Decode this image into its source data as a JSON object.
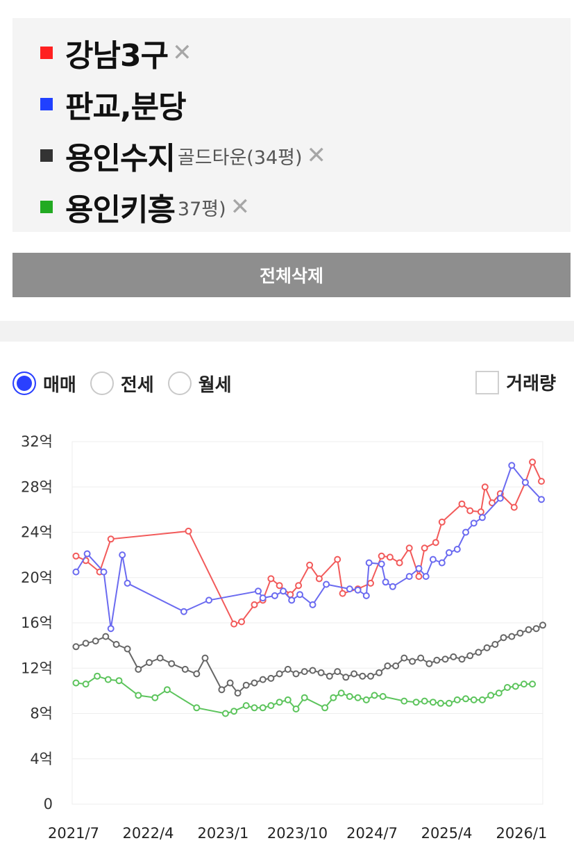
{
  "legend": {
    "items": [
      {
        "label": "강남3구",
        "color": "#ff2020",
        "remove": "✕"
      },
      {
        "label": "판교,분당",
        "color": "#2040ff",
        "remove": ""
      },
      {
        "label": "용인수지",
        "color": "#333333",
        "sub": "골드타운(34평)",
        "remove": "✕"
      },
      {
        "label": "용인키흥",
        "color": "#22aa22",
        "sub": "37평)",
        "remove": "✕"
      }
    ]
  },
  "actions": {
    "delete_all": "전체삭제"
  },
  "trade_types": {
    "options": [
      "매매",
      "전세",
      "월세"
    ],
    "selected": "매매"
  },
  "volume": {
    "label": "거래량",
    "checked": false
  },
  "chart_data": {
    "type": "line",
    "y_unit": "억",
    "ylim": [
      0,
      32
    ],
    "y_ticks": [
      "0",
      "4억",
      "8억",
      "12억",
      "16억",
      "20억",
      "24억",
      "28억",
      "32억"
    ],
    "x_ticks": [
      "2021/7",
      "2022/4",
      "2023/1",
      "2023/10",
      "2024/7",
      "2025/4",
      "2026/1"
    ],
    "x_range": [
      "2021-07-01",
      "2026-03-25"
    ],
    "grid": true,
    "series": [
      {
        "name": "강남3구",
        "color": "#f25a5a",
        "points": [
          [
            "2021-07-15",
            21.9
          ],
          [
            "2021-08-20",
            21.5
          ],
          [
            "2021-10-10",
            20.5
          ],
          [
            "2021-11-20",
            23.4
          ],
          [
            "2022-09-01",
            24.1
          ],
          [
            "2023-02-15",
            15.9
          ],
          [
            "2023-03-15",
            16.1
          ],
          [
            "2023-05-01",
            17.6
          ],
          [
            "2023-06-01",
            18.0
          ],
          [
            "2023-07-01",
            19.9
          ],
          [
            "2023-08-01",
            19.3
          ],
          [
            "2023-09-10",
            18.5
          ],
          [
            "2023-10-10",
            19.3
          ],
          [
            "2023-11-20",
            21.1
          ],
          [
            "2023-12-25",
            19.9
          ],
          [
            "2024-03-01",
            21.6
          ],
          [
            "2024-03-20",
            18.6
          ],
          [
            "2024-05-15",
            19.0
          ],
          [
            "2024-07-01",
            19.5
          ],
          [
            "2024-08-10",
            21.9
          ],
          [
            "2024-09-10",
            21.8
          ],
          [
            "2024-10-15",
            21.3
          ],
          [
            "2024-11-20",
            22.6
          ],
          [
            "2024-12-25",
            20.1
          ],
          [
            "2025-01-15",
            22.6
          ],
          [
            "2025-02-25",
            23.1
          ],
          [
            "2025-03-20",
            24.9
          ],
          [
            "2025-06-01",
            26.5
          ],
          [
            "2025-07-01",
            25.9
          ],
          [
            "2025-08-10",
            25.8
          ],
          [
            "2025-08-25",
            28.0
          ],
          [
            "2025-09-20",
            26.6
          ],
          [
            "2025-10-20",
            27.4
          ],
          [
            "2025-12-10",
            26.2
          ],
          [
            "2026-01-20",
            28.4
          ],
          [
            "2026-02-15",
            30.2
          ],
          [
            "2026-03-20",
            28.5
          ]
        ]
      },
      {
        "name": "판교,분당",
        "color": "#6a6af0",
        "points": [
          [
            "2021-07-15",
            20.5
          ],
          [
            "2021-08-25",
            22.1
          ],
          [
            "2021-10-25",
            20.5
          ],
          [
            "2021-11-20",
            15.5
          ],
          [
            "2022-01-01",
            22.0
          ],
          [
            "2022-01-20",
            19.5
          ],
          [
            "2022-08-15",
            17.0
          ],
          [
            "2022-11-15",
            18.0
          ],
          [
            "2023-05-15",
            18.8
          ],
          [
            "2023-06-01",
            18.2
          ],
          [
            "2023-07-15",
            18.4
          ],
          [
            "2023-08-15",
            18.8
          ],
          [
            "2023-09-15",
            18.0
          ],
          [
            "2023-10-15",
            18.5
          ],
          [
            "2023-12-01",
            17.6
          ],
          [
            "2024-01-20",
            19.4
          ],
          [
            "2024-04-15",
            19.0
          ],
          [
            "2024-05-15",
            18.9
          ],
          [
            "2024-06-15",
            18.4
          ],
          [
            "2024-06-25",
            21.3
          ],
          [
            "2024-08-10",
            21.2
          ],
          [
            "2024-08-25",
            19.6
          ],
          [
            "2024-09-20",
            19.2
          ],
          [
            "2024-11-20",
            20.1
          ],
          [
            "2024-12-25",
            20.8
          ],
          [
            "2025-01-20",
            20.1
          ],
          [
            "2025-02-15",
            21.6
          ],
          [
            "2025-03-20",
            21.3
          ],
          [
            "2025-04-15",
            22.2
          ],
          [
            "2025-05-15",
            22.5
          ],
          [
            "2025-06-15",
            24.0
          ],
          [
            "2025-07-15",
            24.8
          ],
          [
            "2025-08-15",
            25.3
          ],
          [
            "2025-10-20",
            27.0
          ],
          [
            "2025-12-01",
            29.9
          ],
          [
            "2026-01-20",
            28.4
          ],
          [
            "2026-03-20",
            26.9
          ]
        ]
      },
      {
        "name": "용인수지",
        "color": "#666666",
        "points": [
          [
            "2021-07-15",
            13.9
          ],
          [
            "2021-08-20",
            14.2
          ],
          [
            "2021-09-25",
            14.4
          ],
          [
            "2021-11-01",
            14.8
          ],
          [
            "2021-12-10",
            14.1
          ],
          [
            "2022-01-20",
            13.7
          ],
          [
            "2022-03-01",
            11.9
          ],
          [
            "2022-04-10",
            12.5
          ],
          [
            "2022-05-20",
            12.9
          ],
          [
            "2022-07-01",
            12.4
          ],
          [
            "2022-08-20",
            11.9
          ],
          [
            "2022-10-01",
            11.5
          ],
          [
            "2022-11-01",
            12.9
          ],
          [
            "2023-01-01",
            10.1
          ],
          [
            "2023-02-01",
            10.7
          ],
          [
            "2023-03-01",
            9.8
          ],
          [
            "2023-04-01",
            10.5
          ],
          [
            "2023-05-01",
            10.7
          ],
          [
            "2023-06-01",
            11.0
          ],
          [
            "2023-07-01",
            11.1
          ],
          [
            "2023-08-01",
            11.5
          ],
          [
            "2023-09-01",
            11.9
          ],
          [
            "2023-10-01",
            11.5
          ],
          [
            "2023-11-01",
            11.7
          ],
          [
            "2023-12-01",
            11.8
          ],
          [
            "2024-01-01",
            11.6
          ],
          [
            "2024-02-01",
            11.3
          ],
          [
            "2024-03-01",
            11.7
          ],
          [
            "2024-04-01",
            11.2
          ],
          [
            "2024-05-01",
            11.5
          ],
          [
            "2024-06-01",
            11.3
          ],
          [
            "2024-07-01",
            11.3
          ],
          [
            "2024-08-01",
            11.6
          ],
          [
            "2024-09-01",
            12.2
          ],
          [
            "2024-10-01",
            12.2
          ],
          [
            "2024-11-01",
            12.9
          ],
          [
            "2024-12-01",
            12.6
          ],
          [
            "2025-01-01",
            12.9
          ],
          [
            "2025-02-01",
            12.4
          ],
          [
            "2025-03-01",
            12.7
          ],
          [
            "2025-04-01",
            12.8
          ],
          [
            "2025-05-01",
            13.0
          ],
          [
            "2025-06-01",
            12.8
          ],
          [
            "2025-07-01",
            13.1
          ],
          [
            "2025-08-01",
            13.4
          ],
          [
            "2025-09-01",
            13.8
          ],
          [
            "2025-10-01",
            14.1
          ],
          [
            "2025-11-01",
            14.7
          ],
          [
            "2025-12-01",
            14.8
          ],
          [
            "2026-01-01",
            15.1
          ],
          [
            "2026-02-01",
            15.4
          ],
          [
            "2026-03-01",
            15.5
          ],
          [
            "2026-03-25",
            15.8
          ]
        ]
      },
      {
        "name": "용인키흥",
        "color": "#5cc45c",
        "points": [
          [
            "2021-07-15",
            10.7
          ],
          [
            "2021-08-20",
            10.6
          ],
          [
            "2021-10-01",
            11.3
          ],
          [
            "2021-11-10",
            11.0
          ],
          [
            "2021-12-20",
            10.9
          ],
          [
            "2022-03-01",
            9.6
          ],
          [
            "2022-05-01",
            9.4
          ],
          [
            "2022-06-15",
            10.1
          ],
          [
            "2022-10-01",
            8.5
          ],
          [
            "2023-01-15",
            8.0
          ],
          [
            "2023-02-15",
            8.2
          ],
          [
            "2023-04-01",
            8.7
          ],
          [
            "2023-05-01",
            8.5
          ],
          [
            "2023-06-01",
            8.5
          ],
          [
            "2023-07-01",
            8.7
          ],
          [
            "2023-08-01",
            9.0
          ],
          [
            "2023-09-01",
            9.2
          ],
          [
            "2023-10-01",
            8.4
          ],
          [
            "2023-11-01",
            9.4
          ],
          [
            "2024-01-15",
            8.5
          ],
          [
            "2024-02-15",
            9.4
          ],
          [
            "2024-03-15",
            9.8
          ],
          [
            "2024-04-15",
            9.5
          ],
          [
            "2024-05-15",
            9.4
          ],
          [
            "2024-06-15",
            9.2
          ],
          [
            "2024-07-15",
            9.6
          ],
          [
            "2024-08-15",
            9.5
          ],
          [
            "2024-11-01",
            9.1
          ],
          [
            "2024-12-15",
            9.0
          ],
          [
            "2025-01-15",
            9.1
          ],
          [
            "2025-02-15",
            9.0
          ],
          [
            "2025-03-15",
            8.9
          ],
          [
            "2025-04-15",
            8.9
          ],
          [
            "2025-05-15",
            9.2
          ],
          [
            "2025-06-15",
            9.3
          ],
          [
            "2025-07-15",
            9.2
          ],
          [
            "2025-08-15",
            9.2
          ],
          [
            "2025-09-15",
            9.6
          ],
          [
            "2025-10-15",
            9.8
          ],
          [
            "2025-11-15",
            10.3
          ],
          [
            "2025-12-15",
            10.4
          ],
          [
            "2026-01-15",
            10.6
          ],
          [
            "2026-02-15",
            10.6
          ]
        ]
      }
    ]
  }
}
